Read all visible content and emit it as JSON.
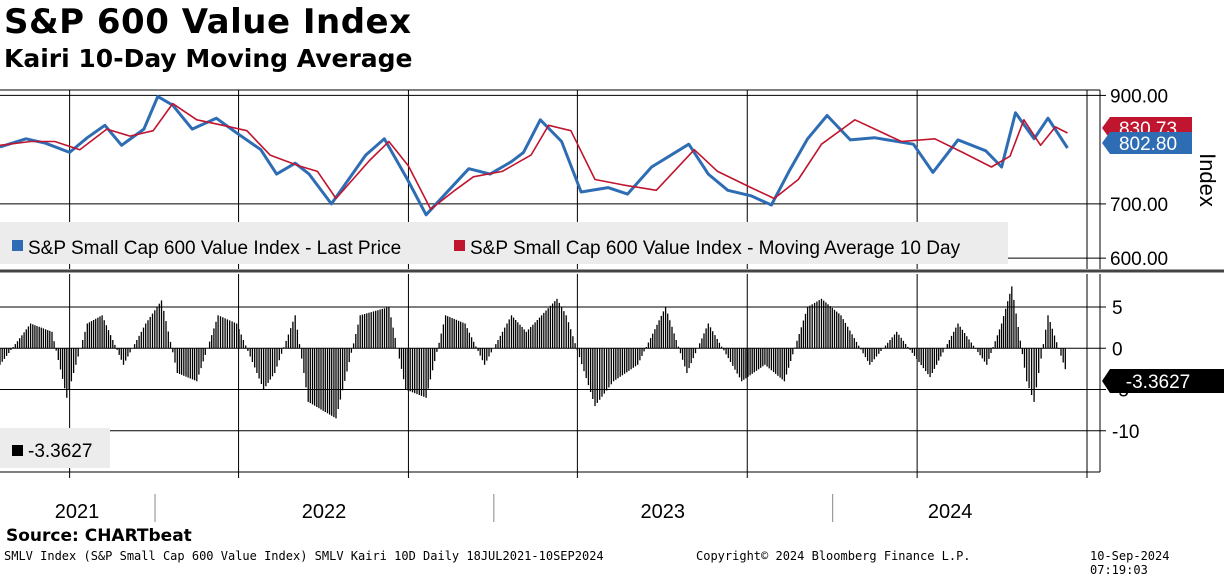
{
  "title": "S&P 600 Value Index",
  "subtitle": "Kairi 10-Day Moving Average",
  "source": "Source: CHARTbeat",
  "footer": {
    "left": "SMLV Index (S&P Small Cap 600 Value Index) SMLV Kairi 10D  Daily 18JUL2021-10SEP2024",
    "center": "Copyright© 2024 Bloomberg Finance L.P.",
    "right": "10-Sep-2024 07:19:03"
  },
  "chart_data": [
    {
      "type": "line",
      "y_axis_label": "Index",
      "ylim": [
        580,
        910
      ],
      "y_ticks": [
        {
          "value": 900,
          "label": "900.00"
        },
        {
          "value": 700,
          "label": "700.00"
        },
        {
          "value": 600,
          "label": "600.00"
        }
      ],
      "colors": {
        "last_price": "#2e6db4",
        "moving_average": "#c0152f"
      },
      "last_value_labels": [
        {
          "text": "830.73",
          "value": 830.73,
          "color": "#c0152f"
        },
        {
          "text": "802.80",
          "value": 802.8,
          "color": "#2e6db4"
        }
      ],
      "legend": [
        {
          "name": "S&P Small Cap 600 Value Index - Last Price",
          "color": "#2e6db4"
        },
        {
          "name": "S&P Small Cap 600 Value Index - Moving Average 10 Day",
          "color": "#c0152f"
        }
      ],
      "series": [
        {
          "name": "S&P Small Cap 600 Value Index - Last Price",
          "x": [
            "2021-07-18",
            "2021-08-15",
            "2021-09-05",
            "2021-10-01",
            "2021-10-20",
            "2021-11-08",
            "2021-11-26",
            "2021-12-20",
            "2022-01-04",
            "2022-01-20",
            "2022-02-10",
            "2022-03-08",
            "2022-03-29",
            "2022-04-25",
            "2022-05-12",
            "2022-06-01",
            "2022-06-16",
            "2022-07-10",
            "2022-08-16",
            "2022-09-05",
            "2022-09-30",
            "2022-10-20",
            "2022-11-15",
            "2022-12-05",
            "2022-12-28",
            "2023-01-20",
            "2023-02-02",
            "2023-02-20",
            "2023-03-15",
            "2023-04-05",
            "2023-05-04",
            "2023-05-25",
            "2023-06-20",
            "2023-07-30",
            "2023-08-20",
            "2023-09-10",
            "2023-10-05",
            "2023-10-27",
            "2023-11-15",
            "2023-12-05",
            "2023-12-26",
            "2024-01-20",
            "2024-02-15",
            "2024-03-28",
            "2024-04-18",
            "2024-05-15",
            "2024-06-14",
            "2024-07-01",
            "2024-07-16",
            "2024-08-05",
            "2024-08-20",
            "2024-09-10"
          ],
          "y": [
            805,
            820,
            812,
            795,
            822,
            845,
            808,
            838,
            898,
            882,
            838,
            858,
            832,
            800,
            755,
            775,
            755,
            700,
            790,
            820,
            745,
            680,
            728,
            765,
            755,
            778,
            795,
            855,
            815,
            722,
            730,
            718,
            768,
            810,
            755,
            725,
            715,
            698,
            760,
            820,
            863,
            818,
            822,
            810,
            758,
            818,
            798,
            768,
            868,
            820,
            858,
            803
          ]
        },
        {
          "name": "S&P Small Cap 600 Value Index - Moving Average 10 Day",
          "x": [
            "2021-07-18",
            "2021-08-20",
            "2021-09-15",
            "2021-10-12",
            "2021-11-10",
            "2021-12-05",
            "2021-12-30",
            "2022-01-20",
            "2022-02-15",
            "2022-03-15",
            "2022-04-10",
            "2022-05-05",
            "2022-06-05",
            "2022-06-25",
            "2022-07-15",
            "2022-08-20",
            "2022-09-10",
            "2022-10-01",
            "2022-10-25",
            "2022-11-20",
            "2022-12-10",
            "2023-01-10",
            "2023-02-10",
            "2023-03-01",
            "2023-03-25",
            "2023-04-20",
            "2023-05-20",
            "2023-06-25",
            "2023-08-05",
            "2023-08-30",
            "2023-10-05",
            "2023-10-30",
            "2023-11-25",
            "2023-12-20",
            "2024-01-25",
            "2024-03-15",
            "2024-04-20",
            "2024-05-20",
            "2024-06-20",
            "2024-07-10",
            "2024-07-25",
            "2024-08-12",
            "2024-08-28",
            "2024-09-10"
          ],
          "y": [
            808,
            815,
            815,
            800,
            838,
            825,
            835,
            885,
            855,
            845,
            835,
            790,
            770,
            760,
            710,
            780,
            815,
            770,
            690,
            725,
            750,
            760,
            790,
            845,
            835,
            745,
            735,
            725,
            800,
            760,
            730,
            710,
            745,
            810,
            855,
            815,
            820,
            795,
            768,
            788,
            855,
            808,
            842,
            830.73
          ]
        }
      ]
    },
    {
      "type": "bar",
      "ylim": [
        -15,
        9
      ],
      "y_ticks": [
        {
          "value": 5,
          "label": "5"
        },
        {
          "value": 0,
          "label": "0"
        },
        {
          "value": -5,
          "label": "-5"
        },
        {
          "value": -10,
          "label": "-10"
        }
      ],
      "legend": [
        {
          "name": "-3.3627",
          "color": "#000000"
        }
      ],
      "last_value_label": {
        "text": "-3.3627",
        "value": -3.3627
      },
      "series": [
        {
          "name": "Kairi 10D",
          "x": [
            "2021-07-18",
            "2021-08-20",
            "2021-09-12",
            "2021-09-28",
            "2021-10-20",
            "2021-11-05",
            "2021-11-28",
            "2021-12-22",
            "2022-01-08",
            "2022-01-25",
            "2022-02-15",
            "2022-03-10",
            "2022-03-30",
            "2022-04-28",
            "2022-05-10",
            "2022-06-01",
            "2022-06-15",
            "2022-07-15",
            "2022-08-10",
            "2022-09-10",
            "2022-09-28",
            "2022-10-20",
            "2022-11-10",
            "2022-12-01",
            "2022-12-22",
            "2023-01-20",
            "2023-02-05",
            "2023-03-10",
            "2023-03-20",
            "2023-04-20",
            "2023-05-10",
            "2023-06-05",
            "2023-07-05",
            "2023-07-28",
            "2023-08-20",
            "2023-09-25",
            "2023-10-20",
            "2023-11-10",
            "2023-12-05",
            "2023-12-20",
            "2024-01-10",
            "2024-02-10",
            "2024-03-10",
            "2024-04-15",
            "2024-05-15",
            "2024-06-15",
            "2024-07-01",
            "2024-07-12",
            "2024-07-28",
            "2024-08-05",
            "2024-08-20",
            "2024-09-10"
          ],
          "y": [
            -2,
            3,
            2,
            -6,
            3,
            4,
            -2,
            3,
            5.8,
            -3,
            -4,
            4,
            3,
            -5,
            -3,
            4,
            -6.5,
            -8.5,
            4,
            5,
            -5,
            -6,
            4,
            3,
            -2,
            4,
            2,
            6,
            4,
            -7,
            -4,
            -2,
            5,
            -3,
            3,
            -4,
            -2,
            -4,
            5,
            6,
            4,
            -2,
            2,
            -3.5,
            3,
            -2,
            3,
            7.5,
            -4,
            -6.5,
            4,
            -3.3627
          ]
        }
      ]
    }
  ],
  "x_axis": {
    "year_labels": [
      {
        "text": "2021",
        "date": "2021-07-18",
        "end": "2021-12-31"
      },
      {
        "text": "2022",
        "date": "2022-01-01",
        "end": "2022-12-31"
      },
      {
        "text": "2023",
        "date": "2023-01-01",
        "end": "2023-12-31"
      },
      {
        "text": "2024",
        "date": "2024-01-01",
        "end": "2024-09-10"
      }
    ],
    "gridline_dates": [
      "2021-10-01",
      "2022-04-01",
      "2022-10-01",
      "2023-04-01",
      "2023-10-01",
      "2024-04-01",
      "2024-10-01"
    ],
    "year_separators": [
      "2022-01-01",
      "2023-01-01",
      "2024-01-01"
    ],
    "start": "2021-07-18",
    "end": "2024-10-15"
  }
}
